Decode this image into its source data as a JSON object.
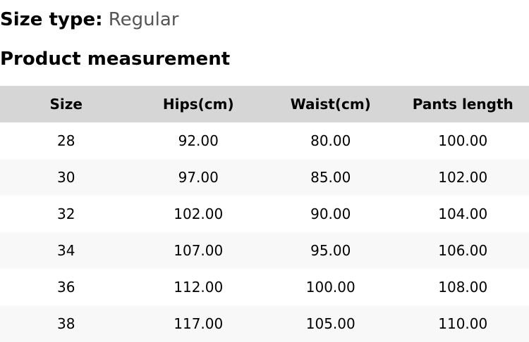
{
  "size_type": {
    "label": "Size type:",
    "value": "Regular"
  },
  "section_title": "Product measurement",
  "table": {
    "headers": [
      "Size",
      "Hips(cm)",
      "Waist(cm)",
      "Pants length"
    ],
    "rows": [
      [
        "28",
        "92.00",
        "80.00",
        "100.00"
      ],
      [
        "30",
        "97.00",
        "85.00",
        "102.00"
      ],
      [
        "32",
        "102.00",
        "90.00",
        "104.00"
      ],
      [
        "34",
        "107.00",
        "95.00",
        "106.00"
      ],
      [
        "36",
        "112.00",
        "100.00",
        "108.00"
      ],
      [
        "38",
        "117.00",
        "105.00",
        "110.00"
      ]
    ]
  }
}
